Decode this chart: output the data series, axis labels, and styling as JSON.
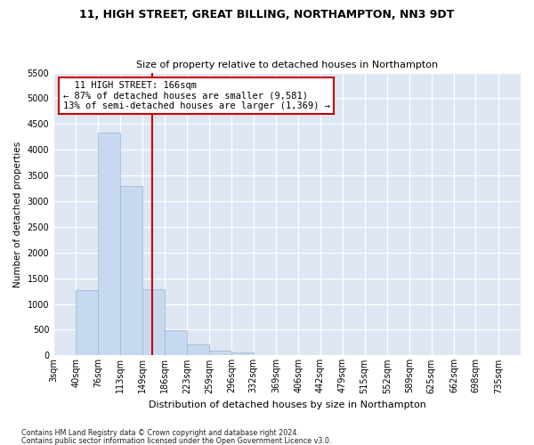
{
  "title1": "11, HIGH STREET, GREAT BILLING, NORTHAMPTON, NN3 9DT",
  "title2": "Size of property relative to detached houses in Northampton",
  "xlabel": "Distribution of detached houses by size in Northampton",
  "ylabel": "Number of detached properties",
  "footnote1": "Contains HM Land Registry data © Crown copyright and database right 2024.",
  "footnote2": "Contains public sector information licensed under the Open Government Licence v3.0.",
  "annotation_title": "11 HIGH STREET: 166sqm",
  "annotation_line1": "← 87% of detached houses are smaller (9,581)",
  "annotation_line2": "13% of semi-detached houses are larger (1,369) →",
  "bar_categories": [
    "3sqm",
    "40sqm",
    "76sqm",
    "113sqm",
    "149sqm",
    "186sqm",
    "223sqm",
    "259sqm",
    "296sqm",
    "332sqm",
    "369sqm",
    "406sqm",
    "442sqm",
    "479sqm",
    "515sqm",
    "552sqm",
    "589sqm",
    "625sqm",
    "662sqm",
    "698sqm",
    "735sqm"
  ],
  "bar_edges": [
    3,
    40,
    76,
    113,
    149,
    186,
    223,
    259,
    296,
    332,
    369,
    406,
    442,
    479,
    515,
    552,
    589,
    625,
    662,
    698,
    735
  ],
  "bar_values": [
    0,
    1270,
    4330,
    3300,
    1280,
    490,
    210,
    90,
    60,
    0,
    0,
    0,
    0,
    0,
    0,
    0,
    0,
    0,
    0,
    0
  ],
  "bar_color": "#c6d9f0",
  "bar_edge_color": "#9ab3d0",
  "vline_x": 166,
  "vline_color": "#cc0000",
  "bg_color": "#dde6f2",
  "grid_color": "#ffffff",
  "ylim_max": 5500,
  "yticks": [
    0,
    500,
    1000,
    1500,
    2000,
    2500,
    3000,
    3500,
    4000,
    4500,
    5000,
    5500
  ],
  "xlim_min": 3,
  "xlim_max": 772,
  "title1_fontsize": 9.0,
  "title2_fontsize": 8.0,
  "xlabel_fontsize": 8.0,
  "ylabel_fontsize": 7.5,
  "tick_fontsize": 7.0,
  "annot_fontsize": 7.5,
  "footnote_fontsize": 5.8
}
